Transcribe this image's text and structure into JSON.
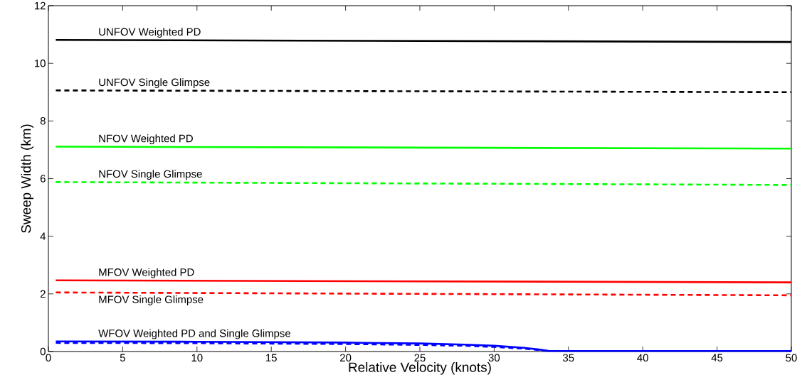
{
  "chart_data": {
    "type": "line",
    "xlabel": "Relative Velocity (knots)",
    "ylabel": "Sweep Width (km)",
    "xlim": [
      0,
      50
    ],
    "ylim": [
      0,
      12
    ],
    "xticks": [
      0,
      5,
      10,
      15,
      20,
      25,
      30,
      35,
      40,
      45,
      50
    ],
    "yticks": [
      0,
      2,
      4,
      6,
      8,
      10,
      12
    ],
    "marker": "none",
    "series": [
      {
        "color": "#000000",
        "line_style": "solid",
        "x": [
          0.5,
          50
        ],
        "values": [
          10.81,
          10.74
        ]
      },
      {
        "color": "#000000",
        "line_style": "dashed",
        "x": [
          0.5,
          50
        ],
        "values": [
          9.06,
          9.0
        ]
      },
      {
        "color": "#00ff00",
        "line_style": "solid",
        "x": [
          0.5,
          50
        ],
        "values": [
          7.11,
          7.04
        ]
      },
      {
        "color": "#00ff00",
        "line_style": "dashed",
        "x": [
          0.5,
          50
        ],
        "values": [
          5.88,
          5.78
        ]
      },
      {
        "color": "#ff0000",
        "line_style": "solid",
        "x": [
          0.5,
          50
        ],
        "values": [
          2.47,
          2.4
        ]
      },
      {
        "color": "#ff0000",
        "line_style": "dashed",
        "x": [
          0.5,
          50
        ],
        "values": [
          2.05,
          1.95
        ]
      },
      {
        "color": "#0000ff",
        "line_style": "solid",
        "x": [
          0.5,
          10,
          20,
          25,
          28,
          30,
          32,
          33,
          33.7,
          40,
          50
        ],
        "values": [
          0.35,
          0.34,
          0.31,
          0.28,
          0.24,
          0.2,
          0.13,
          0.07,
          0.02,
          0.02,
          0.02
        ]
      },
      {
        "color": "#0000ff",
        "line_style": "dashed",
        "x": [
          0.5,
          10,
          20,
          25,
          28,
          30,
          32,
          33,
          33.7
        ],
        "values": [
          0.3,
          0.29,
          0.26,
          0.23,
          0.2,
          0.16,
          0.1,
          0.05,
          0.02
        ]
      }
    ],
    "annotations": [
      {
        "text": "UNFOV Weighted PD",
        "y": 10.81
      },
      {
        "text": "UNFOV Single Glimpse",
        "y": 9.06
      },
      {
        "text": "NFOV Weighted PD",
        "y": 7.11
      },
      {
        "text": "NFOV Single Glimpse",
        "y": 5.88
      },
      {
        "text": "MFOV Weighted PD",
        "y": 2.47
      },
      {
        "text": "MFOV Single Glimpse",
        "y": 2.05
      },
      {
        "text": "WFOV Weighted PD and Single Glimpse",
        "y": 0.35
      }
    ]
  }
}
